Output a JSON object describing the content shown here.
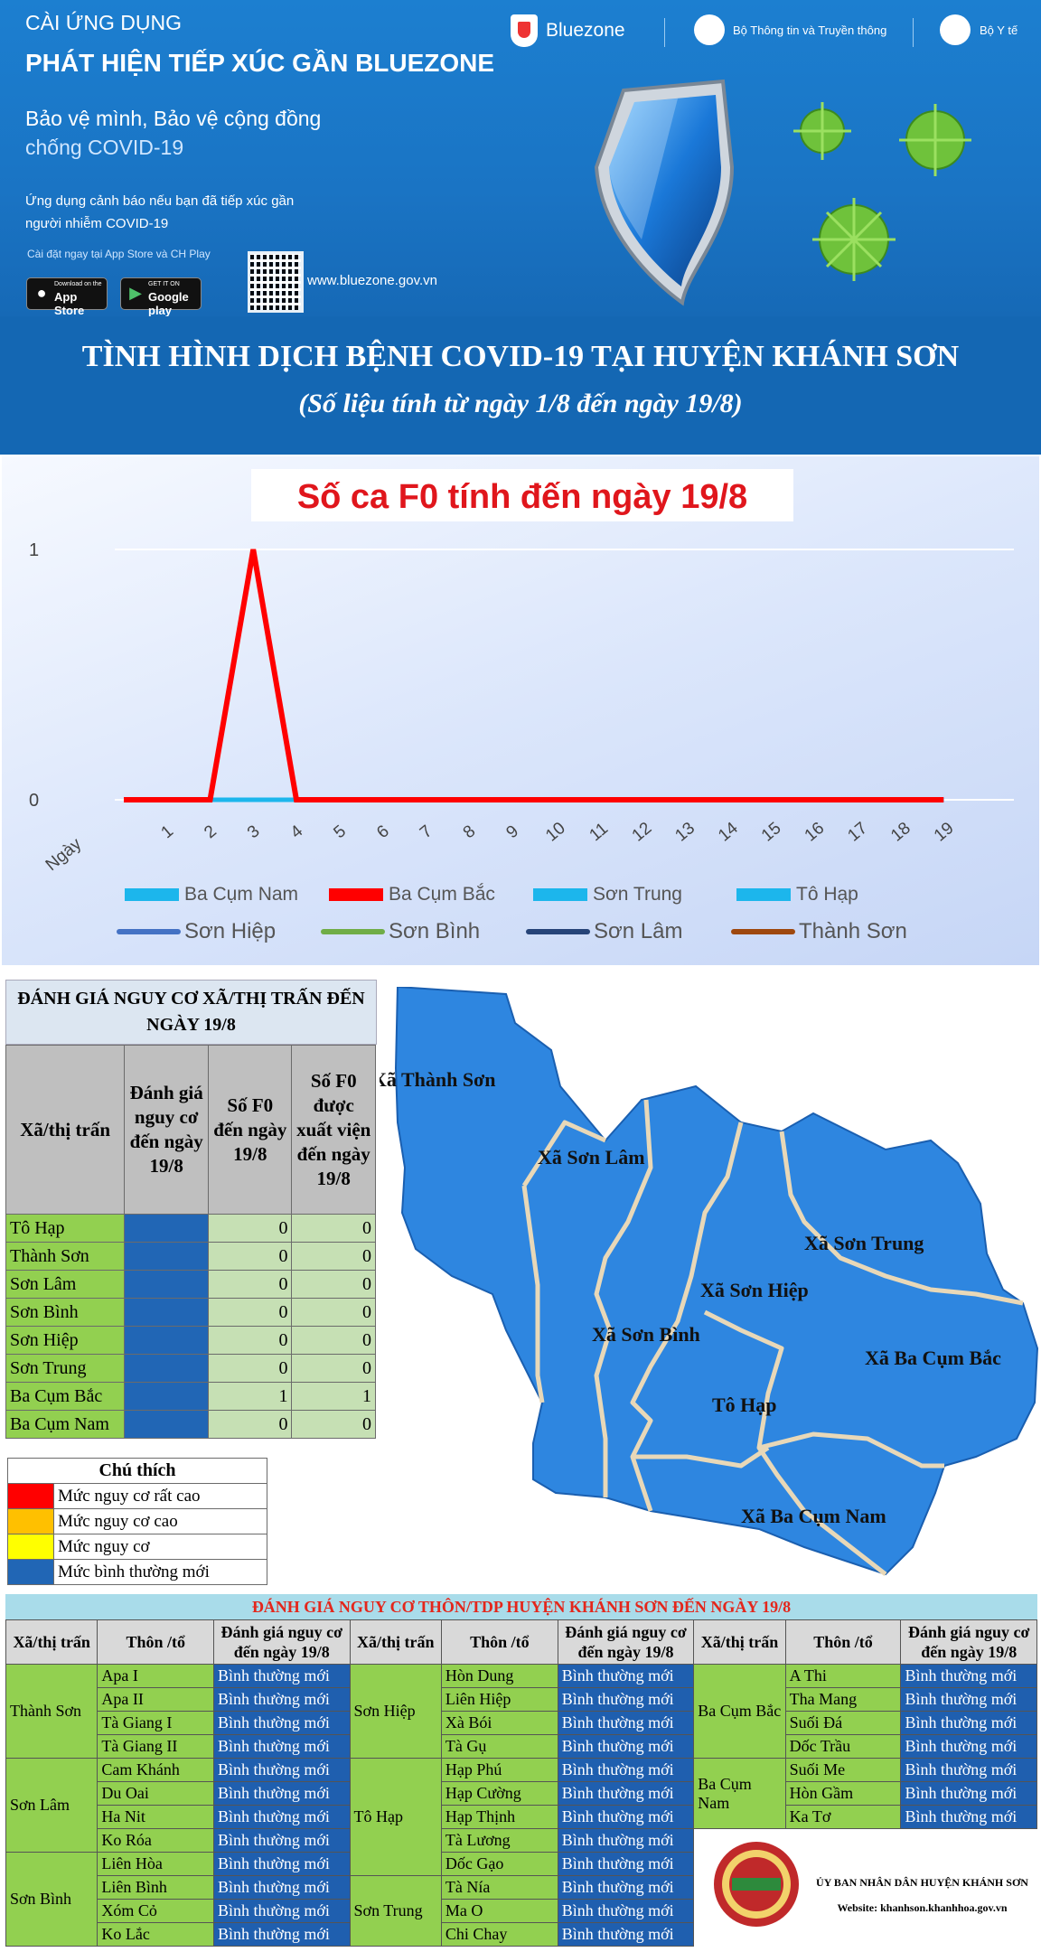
{
  "banner": {
    "line1": "CÀI ỨNG DỤNG",
    "line2": "PHÁT HIỆN TIẾP XÚC GẦN BLUEZONE",
    "slogan1": "Bảo vệ mình, Bảo vệ cộng đồng",
    "slogan2": "chống COVID-19",
    "desc": "Ứng dụng cảnh báo nếu bạn đã tiếp xúc gần người nhiễm COVID-19",
    "install": "Cài đặt ngay tại App Store và CH Play",
    "appstore_small": "Download on the",
    "appstore": "App Store",
    "googleplay_small": "GET IT ON",
    "googleplay": "Google play",
    "url": "www.bluezone.gov.vn",
    "logo_bluezone": "Bluezone",
    "logo_ministry1": "Bộ Thông tin và Truyền thông",
    "logo_ministry2": "Bộ Y tế"
  },
  "heading": {
    "title": "TÌNH HÌNH DỊCH BỆNH COVID-19 TẠI HUYỆN KHÁNH SƠN",
    "subtitle": "(Số liệu tính từ ngày 1/8 đến ngày 19/8)"
  },
  "chart_data": {
    "type": "line",
    "title": "Số ca F0 tính đến ngày 19/8",
    "xlabel": "Ngày",
    "ylabel": "",
    "x": [
      1,
      2,
      3,
      4,
      5,
      6,
      7,
      8,
      9,
      10,
      11,
      12,
      13,
      14,
      15,
      16,
      17,
      18,
      19
    ],
    "ylim": [
      0,
      1
    ],
    "yticks": [
      0,
      1
    ],
    "grid": true,
    "legend_position": "bottom",
    "series": [
      {
        "name": "Ba Cụm Nam",
        "color": "#1cb6ec",
        "values": [
          0,
          0,
          0,
          0,
          0,
          0,
          0,
          0,
          0,
          0,
          0,
          0,
          0,
          0,
          0,
          0,
          0,
          0,
          0
        ]
      },
      {
        "name": "Ba Cụm Bắc",
        "color": "#ff0000",
        "values": [
          0,
          0,
          1,
          0,
          0,
          0,
          0,
          0,
          0,
          0,
          0,
          0,
          0,
          0,
          0,
          0,
          0,
          0,
          0
        ]
      },
      {
        "name": "Sơn Trung",
        "color": "#1cb6ec",
        "values": [
          0,
          0,
          0,
          0,
          0,
          0,
          0,
          0,
          0,
          0,
          0,
          0,
          0,
          0,
          0,
          0,
          0,
          0,
          0
        ]
      },
      {
        "name": "Tô Hạp",
        "color": "#1cb6ec",
        "values": [
          0,
          0,
          0,
          0,
          0,
          0,
          0,
          0,
          0,
          0,
          0,
          0,
          0,
          0,
          0,
          0,
          0,
          0,
          0
        ]
      },
      {
        "name": "Sơn Hiệp",
        "color": "#4472c4",
        "values": [
          0,
          0,
          0,
          0,
          0,
          0,
          0,
          0,
          0,
          0,
          0,
          0,
          0,
          0,
          0,
          0,
          0,
          0,
          0
        ]
      },
      {
        "name": "Sơn Bình",
        "color": "#70ad47",
        "values": [
          0,
          0,
          0,
          0,
          0,
          0,
          0,
          0,
          0,
          0,
          0,
          0,
          0,
          0,
          0,
          0,
          0,
          0,
          0
        ]
      },
      {
        "name": "Sơn Lâm",
        "color": "#264478",
        "values": [
          0,
          0,
          0,
          0,
          0,
          0,
          0,
          0,
          0,
          0,
          0,
          0,
          0,
          0,
          0,
          0,
          0,
          0,
          0
        ]
      },
      {
        "name": "Thành Sơn",
        "color": "#9e480e",
        "values": [
          0,
          0,
          0,
          0,
          0,
          0,
          0,
          0,
          0,
          0,
          0,
          0,
          0,
          0,
          0,
          0,
          0,
          0,
          0
        ]
      }
    ]
  },
  "risk_table": {
    "title": "ĐÁNH GIÁ NGUY CƠ XÃ/THỊ TRẤN ĐẾN NGÀY 19/8",
    "headers": [
      "Xã/thị trấn",
      "Đánh giá nguy cơ đến ngày 19/8",
      "Số F0 đến ngày 19/8",
      "Số F0 được xuất viện đến ngày 19/8"
    ],
    "rows": [
      {
        "name": "Tô Hạp",
        "f0": "0",
        "discharged": "0"
      },
      {
        "name": "Thành Sơn",
        "f0": "0",
        "discharged": "0"
      },
      {
        "name": "Sơn Lâm",
        "f0": "0",
        "discharged": "0"
      },
      {
        "name": "Sơn Bình",
        "f0": "0",
        "discharged": "0"
      },
      {
        "name": "Sơn Hiệp",
        "f0": "0",
        "discharged": "0"
      },
      {
        "name": "Sơn Trung",
        "f0": "0",
        "discharged": "0"
      },
      {
        "name": "Ba Cụm Bắc",
        "f0": "1",
        "discharged": "1"
      },
      {
        "name": "Ba Cụm Nam",
        "f0": "0",
        "discharged": "0"
      }
    ],
    "risk_color": "#2166b5"
  },
  "legend": {
    "title": "Chú thích",
    "items": [
      {
        "label": "Mức nguy cơ rất cao",
        "color": "#ff0000"
      },
      {
        "label": "Mức nguy cơ cao",
        "color": "#ffc000"
      },
      {
        "label": "Mức nguy cơ",
        "color": "#ffff00"
      },
      {
        "label": "Mức bình thường mới",
        "color": "#2166b5"
      }
    ]
  },
  "map": {
    "labels": {
      "thanh_son": "Xã Thành Sơn",
      "son_lam": "Xã Sơn Lâm",
      "son_trung": "Xã Sơn Trung",
      "son_hiep": "Xã Sơn Hiệp",
      "son_binh": "Xã Sơn Bình",
      "ba_cum_bac": "Xã Ba Cụm Bắc",
      "to_hap": "Tô Hạp",
      "ba_cum_nam": "Xã Ba Cụm Nam"
    }
  },
  "village_table": {
    "title": "ĐÁNH GIÁ NGUY CƠ THÔN/TDP HUYỆN KHÁNH SƠN ĐẾN NGÀY 19/8",
    "col_commune": "Xã/thị trấn",
    "col_village": "Thôn /tổ",
    "col_risk": "Đánh giá nguy cơ đến ngày 19/8",
    "status": "Bình thường mới",
    "groups": [
      {
        "commune": "Thành Sơn",
        "villages": [
          "Apa I",
          "Apa II",
          "Tà Giang I",
          "Tà Giang II"
        ]
      },
      {
        "commune": "Sơn Lâm",
        "villages": [
          "Cam Khánh",
          "Du Oai",
          "Ha Nit",
          "Ko Róa"
        ]
      },
      {
        "commune": "Sơn Bình",
        "villages": [
          "Liên Hòa",
          "Liên Bình",
          "Xóm Cỏ",
          "Ko Lắc"
        ]
      },
      {
        "commune": "Sơn Hiệp",
        "villages": [
          "Hòn Dung",
          "Liên Hiệp",
          "Xà Bói",
          "Tà Gụ"
        ]
      },
      {
        "commune": "Tô Hạp",
        "villages": [
          "Hạp Phú",
          "Hạp Cường",
          "Hạp Thịnh",
          "Tà Lương",
          "Dốc Gạo"
        ]
      },
      {
        "commune": "Sơn Trung",
        "villages": [
          "Tà Nía",
          "Ma O",
          "Chi Chay"
        ]
      },
      {
        "commune": "Ba Cụm Bắc",
        "villages": [
          "A Thi",
          "Tha Mang",
          "Suối Đá",
          "Dốc Trầu"
        ]
      },
      {
        "commune": "Ba Cụm Nam",
        "villages": [
          "Suối Me",
          "Hòn Gầm",
          "Ka Tơ"
        ]
      }
    ]
  },
  "footer": {
    "org": "ỦY BAN NHÂN DÂN HUYỆN KHÁNH SƠN",
    "website": "Website: khanhson.khanhhoa.gov.vn",
    "logo_text": "KHÁNH SƠN"
  }
}
